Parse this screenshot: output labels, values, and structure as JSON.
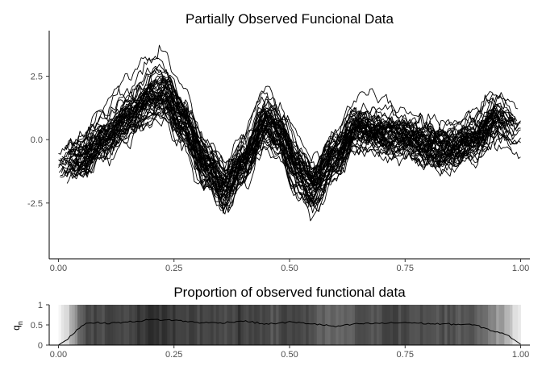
{
  "chart_data": [
    {
      "type": "line",
      "title": "Partially Observed Funcional Data",
      "xlabel": "",
      "ylabel": "",
      "xlim": [
        -0.02,
        1.02
      ],
      "ylim": [
        -4.7,
        4.3
      ],
      "x_ticks": [
        0.0,
        0.25,
        0.5,
        0.75,
        1.0
      ],
      "x_tick_labels": [
        "0.00",
        "0.25",
        "0.50",
        "0.75",
        "1.00"
      ],
      "y_ticks": [
        2.5,
        0.0,
        -2.5
      ],
      "y_tick_labels": [
        "2.5",
        "0.0",
        "-2.5"
      ],
      "grid": false,
      "line_color": "#000000",
      "n_curves": 50,
      "mean_curve": {
        "x": [
          0.0,
          0.05,
          0.1,
          0.15,
          0.2,
          0.23,
          0.27,
          0.32,
          0.36,
          0.4,
          0.45,
          0.48,
          0.52,
          0.55,
          0.6,
          0.65,
          0.7,
          0.75,
          0.8,
          0.85,
          0.9,
          0.95,
          1.0
        ],
        "y": [
          -1.0,
          -0.7,
          0.1,
          1.0,
          1.8,
          2.0,
          0.8,
          -1.0,
          -1.9,
          -0.9,
          0.8,
          0.2,
          -1.2,
          -1.9,
          -0.6,
          0.6,
          0.3,
          0.2,
          -0.2,
          -0.3,
          0.1,
          0.9,
          0.3
        ]
      }
    },
    {
      "type": "area",
      "title": "Proportion of observed functional data",
      "xlabel": "",
      "ylabel": "q",
      "ylabel_subscript": "n",
      "xlim": [
        -0.02,
        1.02
      ],
      "ylim": [
        0,
        1
      ],
      "x_ticks": [
        0.0,
        0.25,
        0.5,
        0.75,
        1.0
      ],
      "x_tick_labels": [
        "0.00",
        "0.25",
        "0.50",
        "0.75",
        "1.00"
      ],
      "y_ticks": [
        0,
        0.5,
        1
      ],
      "y_tick_labels": [
        "0",
        "0.5",
        "1"
      ],
      "grid": false,
      "x": [
        0.0,
        0.02,
        0.04,
        0.06,
        0.08,
        0.1,
        0.15,
        0.2,
        0.25,
        0.3,
        0.35,
        0.4,
        0.45,
        0.5,
        0.55,
        0.6,
        0.65,
        0.7,
        0.75,
        0.8,
        0.85,
        0.9,
        0.94,
        0.96,
        0.98,
        1.0
      ],
      "values": [
        0.0,
        0.15,
        0.38,
        0.55,
        0.56,
        0.54,
        0.57,
        0.63,
        0.62,
        0.56,
        0.55,
        0.6,
        0.52,
        0.57,
        0.53,
        0.46,
        0.53,
        0.54,
        0.56,
        0.53,
        0.52,
        0.5,
        0.35,
        0.3,
        0.18,
        0.02
      ]
    }
  ]
}
